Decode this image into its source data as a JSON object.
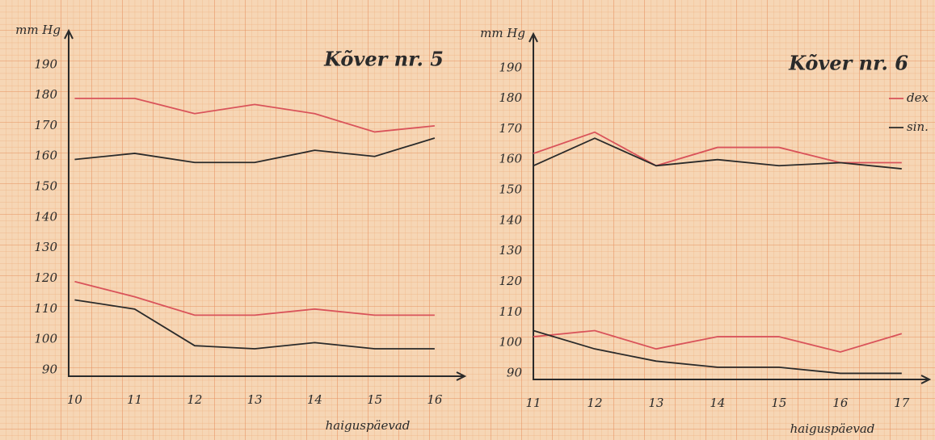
{
  "chart_data": [
    {
      "type": "line",
      "title": "Kõver nr. 5",
      "y_label": "mm Hg",
      "x_label": "haiguspäevad",
      "x": [
        10,
        11,
        12,
        13,
        14,
        15,
        16
      ],
      "xlim": [
        9.9,
        16.5
      ],
      "xticks": [
        10,
        11,
        12,
        13,
        14,
        15,
        16
      ],
      "ylim": [
        88,
        198
      ],
      "yticks": [
        90,
        100,
        110,
        120,
        130,
        140,
        150,
        160,
        170,
        180,
        190
      ],
      "series": [
        {
          "color": "#d9535a",
          "values": [
            179,
            179,
            174,
            177,
            174,
            168,
            170
          ]
        },
        {
          "color": "#2a2a2a",
          "values": [
            159,
            161,
            158,
            158,
            162,
            160,
            166
          ]
        },
        {
          "color": "#d9535a",
          "values": [
            119,
            114,
            108,
            108,
            110,
            108,
            108
          ]
        },
        {
          "color": "#2a2a2a",
          "values": [
            113,
            110,
            98,
            97,
            99,
            97,
            97
          ]
        }
      ]
    },
    {
      "type": "line",
      "title": "Kõver nr. 6",
      "y_label": "mm Hg",
      "x_label": "haiguspäevad",
      "x": [
        11,
        12,
        13,
        14,
        15,
        16,
        17
      ],
      "xlim": [
        11,
        17.45
      ],
      "xticks": [
        11,
        12,
        13,
        14,
        15,
        16,
        17
      ],
      "ylim": [
        88,
        198
      ],
      "yticks": [
        90,
        100,
        110,
        120,
        130,
        140,
        150,
        160,
        170,
        180,
        190
      ],
      "legend": "upper right",
      "series": [
        {
          "name": "dex",
          "color": "#d9535a",
          "values": [
            162,
            169,
            158,
            164,
            164,
            159,
            159
          ]
        },
        {
          "name": "sin.",
          "color": "#2a2a2a",
          "values": [
            158,
            167,
            158,
            160,
            158,
            159,
            157
          ]
        },
        {
          "color": "#d9535a",
          "values": [
            102,
            104,
            98,
            102,
            102,
            97,
            103
          ]
        },
        {
          "color": "#2a2a2a",
          "values": [
            104,
            98,
            94,
            92,
            92,
            90,
            90
          ]
        }
      ]
    }
  ]
}
